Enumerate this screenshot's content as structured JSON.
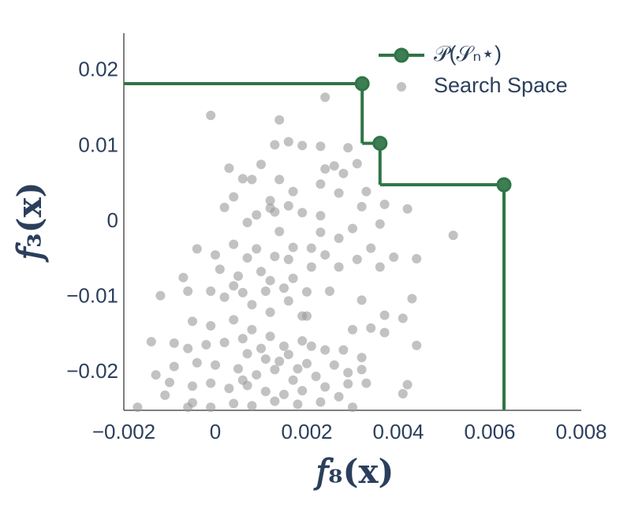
{
  "chart_data": {
    "type": "scatter",
    "xlabel": "𝑓₈(𝐱)",
    "ylabel": "𝑓₃(𝐱)",
    "xlim": [
      -0.002,
      0.008
    ],
    "ylim": [
      -0.025,
      0.025
    ],
    "xticks": [
      {
        "value": -0.002,
        "label": "−0.002"
      },
      0,
      0.002,
      0.004,
      0.006,
      0.008
    ],
    "yticks": [
      {
        "value": -0.02,
        "label": "−0.02"
      },
      {
        "value": -0.01,
        "label": "−0.01"
      },
      0,
      0.01,
      0.02
    ],
    "grid": false,
    "legend": "upper right",
    "series": [
      {
        "name": "𝒫(𝒮ₙ⋆)",
        "color": "#2e7545",
        "line": "steps",
        "x": [
          0.00321,
          0.0036,
          0.00631
        ],
        "y": [
          0.0183,
          0.0104,
          0.0049
        ]
      },
      {
        "name": "Search Space",
        "color": "#9a9a9a",
        "line": "none",
        "x": [
          -0.0001,
          0.0014,
          0.0024,
          0.0013,
          0.0016,
          0.0019,
          0.0023,
          0.0029,
          0.0031,
          0.0024,
          0.0026,
          0.0028,
          0.001,
          0.0003,
          0.0006,
          0.0008,
          0.0014,
          0.0023,
          0.0027,
          0.0033,
          0.0004,
          0.0002,
          0.0012,
          0.0013,
          0.0016,
          0.0019,
          0.0023,
          0.0032,
          0.0037,
          0.0042,
          0.0036,
          0.0052,
          0.0009,
          0.0007,
          0.0014,
          0.0023,
          0.003,
          0.0034,
          0.0039,
          0.0044,
          0.0036,
          0.0031,
          0.0027,
          0.0024,
          0.0021,
          0.0017,
          0.0013,
          0.0009,
          0.0004,
          0.0,
          -0.0004,
          0.0001,
          0.0005,
          0.001,
          0.0012,
          -0.0007,
          -0.0012,
          -0.0006,
          -0.0001,
          0.0002,
          0.0006,
          0.0015,
          0.002,
          0.0025,
          0.0032,
          0.0043,
          0.0041,
          0.0037,
          0.0034,
          0.003,
          0.0037,
          0.0044,
          0.0028,
          0.0032,
          0.0024,
          0.0019,
          0.0015,
          0.0012,
          0.0008,
          0.0004,
          -0.0001,
          -0.0005,
          -0.0014,
          -0.0009,
          -0.0006,
          -0.0002,
          0.0002,
          0.0007,
          0.0011,
          0.0016,
          0.002,
          0.0026,
          0.0029,
          0.0032,
          0.0022,
          0.0017,
          0.0013,
          0.0009,
          0.0005,
          0.0,
          -0.0004,
          -0.0009,
          -0.0013,
          -0.001,
          -0.0005,
          -0.0001,
          0.0003,
          0.0007,
          0.0011,
          0.0015,
          0.0019,
          0.0024,
          0.0029,
          0.0033,
          0.0042,
          0.0041,
          0.0027,
          0.0023,
          0.0018,
          0.0013,
          0.0008,
          0.0004,
          -0.0001,
          -0.0005,
          -0.0011,
          -0.0017,
          0.003,
          -0.0006,
          0.0008,
          0.0012,
          0.0016,
          0.0019,
          0.0006,
          0.001,
          0.0014,
          0.0018,
          0.0006,
          0.0021,
          0.0004,
          0.0011,
          0.0017,
          0.0021,
          0.0007,
          0.0016,
          0.0027,
          0.0012,
          0.0017,
          0.002
        ],
        "y": [
          0.0141,
          0.0135,
          0.0165,
          0.0102,
          0.0106,
          0.0101,
          0.01,
          0.0098,
          0.0077,
          0.007,
          0.0074,
          0.0064,
          0.0076,
          0.0071,
          0.0057,
          0.0056,
          0.0056,
          0.005,
          0.0038,
          0.004,
          0.0033,
          0.0019,
          0.0018,
          0.0013,
          0.0021,
          0.0012,
          0.0008,
          0.002,
          0.0023,
          0.0017,
          -0.0003,
          -0.0018,
          0.0009,
          -0.0001,
          -0.0013,
          -0.0014,
          -0.0009,
          -0.0035,
          -0.0047,
          -0.0049,
          -0.006,
          -0.005,
          -0.006,
          -0.0044,
          -0.006,
          -0.0034,
          -0.0046,
          -0.0036,
          -0.003,
          -0.0044,
          -0.0036,
          -0.0063,
          -0.0072,
          -0.0066,
          -0.0078,
          -0.0074,
          -0.0098,
          -0.0092,
          -0.0092,
          -0.01,
          -0.0094,
          -0.0088,
          -0.0093,
          -0.0092,
          -0.0104,
          -0.0102,
          -0.0128,
          -0.0124,
          -0.0141,
          -0.0143,
          -0.0147,
          -0.0164,
          -0.017,
          -0.018,
          -0.017,
          -0.0158,
          -0.0165,
          -0.0152,
          -0.0143,
          -0.013,
          -0.0138,
          -0.0132,
          -0.0159,
          -0.0161,
          -0.0168,
          -0.0163,
          -0.016,
          -0.0175,
          -0.0182,
          -0.0176,
          -0.0188,
          -0.019,
          -0.02,
          -0.0196,
          -0.0205,
          -0.021,
          -0.0196,
          -0.0203,
          -0.0195,
          -0.019,
          -0.0187,
          -0.0192,
          -0.0203,
          -0.0213,
          -0.0218,
          -0.0214,
          -0.0221,
          -0.0217,
          -0.0225,
          -0.0229,
          -0.0224,
          -0.0219,
          -0.0215,
          -0.0214,
          -0.0216,
          -0.0228,
          -0.0232,
          -0.0239,
          -0.0242,
          -0.0238,
          -0.0244,
          -0.0241,
          -0.0246,
          -0.024,
          -0.023,
          -0.0246,
          -0.0246,
          -0.0246,
          -0.011,
          -0.012,
          -0.0105,
          -0.0125,
          -0.0155,
          -0.0168,
          -0.0185,
          -0.0195,
          -0.021,
          -0.0165,
          -0.0085,
          -0.0092,
          -0.0075,
          -0.0035,
          -0.0048,
          -0.005,
          -0.0022,
          0.0028,
          0.004,
          -0.0125
        ]
      }
    ]
  }
}
